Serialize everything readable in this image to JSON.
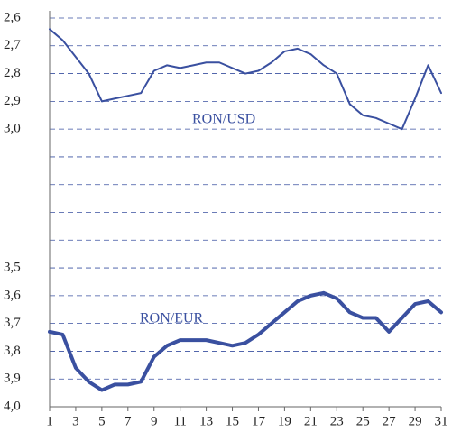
{
  "chart_data": {
    "type": "line",
    "x": [
      1,
      2,
      3,
      4,
      5,
      6,
      7,
      8,
      9,
      10,
      11,
      12,
      13,
      14,
      15,
      16,
      17,
      18,
      19,
      20,
      21,
      22,
      23,
      24,
      25,
      26,
      27,
      28,
      29,
      30,
      31
    ],
    "xlim": [
      1,
      31
    ],
    "xticks": [
      1,
      3,
      5,
      7,
      9,
      11,
      13,
      15,
      17,
      19,
      21,
      23,
      25,
      27,
      29,
      31
    ],
    "ylim": [
      2.6,
      4.0
    ],
    "y_inverted": true,
    "yticks": [
      {
        "value": 2.6,
        "label": "2,6"
      },
      {
        "value": 2.7,
        "label": "2,7"
      },
      {
        "value": 2.8,
        "label": "2,8"
      },
      {
        "value": 2.9,
        "label": "2,9"
      },
      {
        "value": 3.0,
        "label": "3,0"
      },
      {
        "value": 3.1,
        "label": null
      },
      {
        "value": 3.2,
        "label": null
      },
      {
        "value": 3.3,
        "label": null
      },
      {
        "value": 3.4,
        "label": null
      },
      {
        "value": 3.5,
        "label": "3,5"
      },
      {
        "value": 3.6,
        "label": "3,6"
      },
      {
        "value": 3.7,
        "label": "3,7"
      },
      {
        "value": 3.8,
        "label": "3,8"
      },
      {
        "value": 3.9,
        "label": "3,9"
      },
      {
        "value": 4.0,
        "label": "4,0"
      }
    ],
    "grid": true,
    "series": [
      {
        "name": "RON/USD",
        "color": "#3a50a0",
        "width": 2,
        "values": [
          2.64,
          2.68,
          2.74,
          2.8,
          2.9,
          2.89,
          2.88,
          2.87,
          2.79,
          2.77,
          2.78,
          2.77,
          2.76,
          2.76,
          2.78,
          2.8,
          2.79,
          2.76,
          2.72,
          2.71,
          2.73,
          2.77,
          2.8,
          2.91,
          2.95,
          2.96,
          2.98,
          3.0,
          2.89,
          2.77,
          2.87
        ]
      },
      {
        "name": "RON/EUR",
        "color": "#3a50a0",
        "width": 4,
        "values": [
          3.73,
          3.74,
          3.86,
          3.91,
          3.94,
          3.92,
          3.92,
          3.91,
          3.82,
          3.78,
          3.76,
          3.76,
          3.76,
          3.77,
          3.78,
          3.77,
          3.74,
          3.7,
          3.66,
          3.62,
          3.6,
          3.59,
          3.61,
          3.66,
          3.68,
          3.68,
          3.73,
          3.68,
          3.63,
          3.62,
          3.66
        ]
      }
    ]
  }
}
